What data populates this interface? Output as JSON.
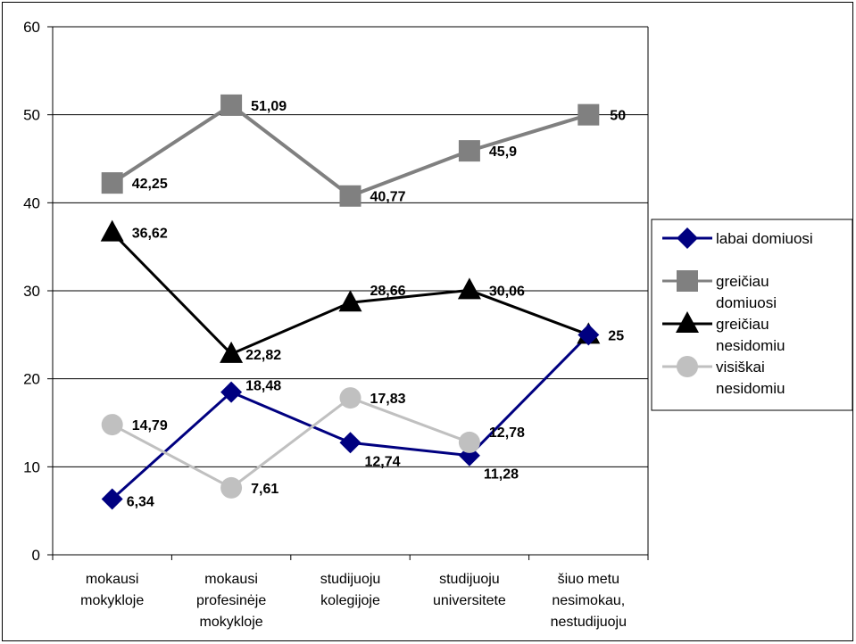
{
  "chart_data": {
    "type": "line",
    "categories": [
      [
        "mokausi",
        "mokykloje"
      ],
      [
        "mokausi",
        "profesinėje",
        "mokykloje"
      ],
      [
        "studijuoju",
        "kolegijoje"
      ],
      [
        "studijuoju",
        "universitete"
      ],
      [
        "šiuo metu",
        "nesimokau,",
        "nestudijuoju"
      ]
    ],
    "ylim": [
      0,
      60
    ],
    "yticks": [
      0,
      10,
      20,
      30,
      40,
      50,
      60
    ],
    "grid": true,
    "legend_position": "right",
    "series": [
      {
        "name": [
          "labai domiuosi"
        ],
        "values": [
          6.34,
          18.48,
          12.74,
          11.28,
          25
        ],
        "labels": [
          "6,34",
          "18,48",
          "12,74",
          "11,28",
          "25"
        ],
        "color": "#000080",
        "marker": "diamond"
      },
      {
        "name": [
          "greičiau",
          "domiuosi"
        ],
        "values": [
          42.25,
          51.09,
          40.77,
          45.9,
          50
        ],
        "labels": [
          "42,25",
          "51,09",
          "40,77",
          "45,9",
          "50"
        ],
        "color": "#808080",
        "marker": "square"
      },
      {
        "name": [
          "greičiau",
          "nesidomiu"
        ],
        "values": [
          36.62,
          22.82,
          28.66,
          30.06,
          25
        ],
        "labels": [
          "36,62",
          "22,82",
          "28,66",
          "30,06",
          ""
        ],
        "color": "#000000",
        "marker": "triangle"
      },
      {
        "name": [
          "visiškai",
          "nesidomiu"
        ],
        "values": [
          14.79,
          7.61,
          17.83,
          12.78,
          null
        ],
        "labels": [
          "14,79",
          "7,61",
          "17,83",
          "12,78",
          ""
        ],
        "color": "#c0c0c0",
        "marker": "circle"
      }
    ]
  }
}
